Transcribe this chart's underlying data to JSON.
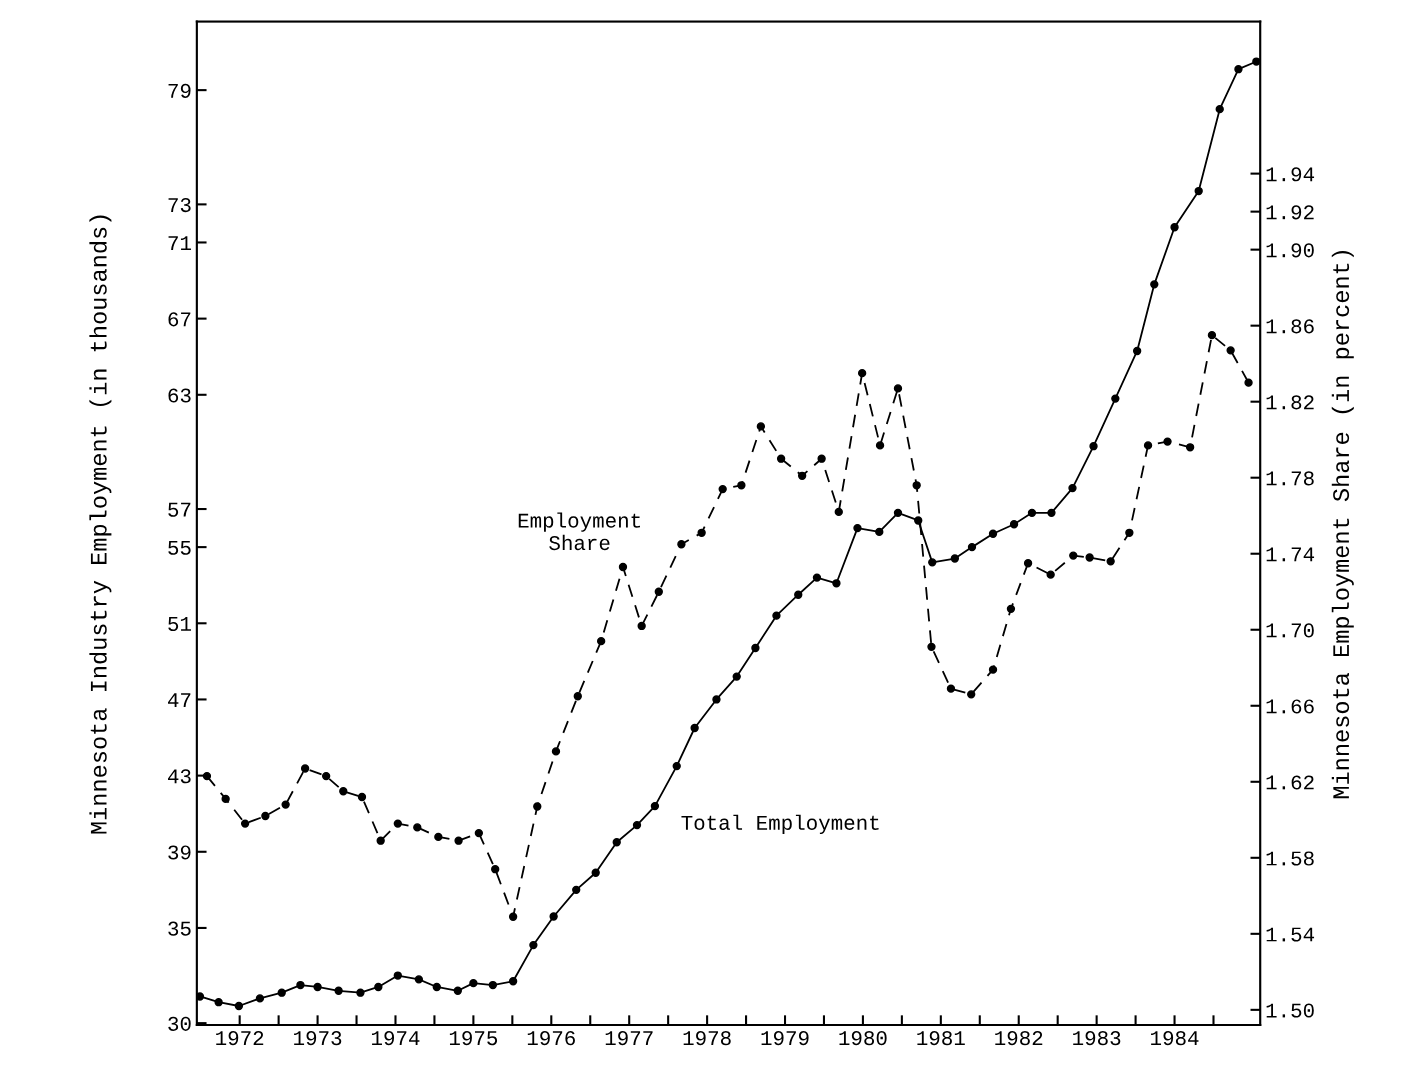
{
  "chart_data": {
    "type": "line",
    "ylabel": "Minnesota Industry Employment (in thousands)",
    "y2label": "Minnesota Employment Share (in percent)",
    "xlim": [
      1971.95,
      1985.6
    ],
    "xticks": [
      {
        "value": 1972.5,
        "label": "1972"
      },
      {
        "value": 1973,
        "label": null
      },
      {
        "value": 1973.5,
        "label": "1973"
      },
      {
        "value": 1974,
        "label": null
      },
      {
        "value": 1974.5,
        "label": "1974"
      },
      {
        "value": 1975,
        "label": null
      },
      {
        "value": 1975.5,
        "label": "1975"
      },
      {
        "value": 1976,
        "label": null
      },
      {
        "value": 1976.5,
        "label": "1976"
      },
      {
        "value": 1977,
        "label": null
      },
      {
        "value": 1977.5,
        "label": "1977"
      },
      {
        "value": 1978,
        "label": null
      },
      {
        "value": 1978.5,
        "label": "1978"
      },
      {
        "value": 1979,
        "label": null
      },
      {
        "value": 1979.5,
        "label": "1979"
      },
      {
        "value": 1980,
        "label": null
      },
      {
        "value": 1980.5,
        "label": "1980"
      },
      {
        "value": 1981,
        "label": null
      },
      {
        "value": 1981.5,
        "label": "1981"
      },
      {
        "value": 1982,
        "label": null
      },
      {
        "value": 1982.5,
        "label": "1982"
      },
      {
        "value": 1983,
        "label": null
      },
      {
        "value": 1983.5,
        "label": "1983"
      },
      {
        "value": 1984,
        "label": null
      },
      {
        "value": 1984.5,
        "label": "1984"
      },
      {
        "value": 1985,
        "label": null
      }
    ],
    "ylim": [
      29.9,
      82.6
    ],
    "yticks": [
      30,
      35,
      39,
      43,
      47,
      51,
      55,
      57,
      63,
      67,
      71,
      73,
      79
    ],
    "y2lim": [
      1.492,
      2.02
    ],
    "y2ticks": [
      {
        "value": 1.5,
        "label": "1.50"
      },
      1.54,
      1.58,
      1.62,
      1.66,
      {
        "value": 1.7,
        "label": "1.70"
      },
      1.74,
      1.78,
      1.82,
      1.86,
      {
        "value": 1.9,
        "label": "1.90"
      },
      1.92,
      1.94
    ],
    "grid": false,
    "legend": false,
    "marker": "circle",
    "series": [
      {
        "name": "Total Employment",
        "color": "#000000",
        "line_style": "solid",
        "x": [
          1971.99,
          1972.23,
          1972.49,
          1972.76,
          1973.04,
          1973.28,
          1973.5,
          1973.77,
          1974.05,
          1974.28,
          1974.53,
          1974.8,
          1975.03,
          1975.3,
          1975.5,
          1975.75,
          1976.01,
          1976.27,
          1976.53,
          1976.82,
          1977.07,
          1977.34,
          1977.6,
          1977.83,
          1978.11,
          1978.34,
          1978.62,
          1978.88,
          1979.12,
          1979.39,
          1979.67,
          1979.91,
          1980.16,
          1980.43,
          1980.71,
          1980.95,
          1981.21,
          1981.39,
          1981.68,
          1981.9,
          1982.17,
          1982.44,
          1982.67,
          1982.92,
          1983.19,
          1983.46,
          1983.74,
          1984.02,
          1984.24,
          1984.5,
          1984.81,
          1985.08,
          1985.32,
          1985.55
        ],
        "values": [
          31.4,
          31.1,
          30.9,
          31.3,
          31.6,
          32.0,
          31.9,
          31.7,
          31.6,
          31.9,
          32.5,
          32.3,
          31.9,
          31.7,
          32.1,
          32.0,
          32.2,
          34.1,
          35.6,
          37.0,
          37.9,
          39.5,
          40.4,
          41.4,
          43.5,
          45.5,
          47.0,
          48.2,
          49.7,
          51.4,
          52.5,
          53.4,
          53.1,
          56.0,
          55.8,
          56.8,
          56.4,
          54.2,
          54.4,
          55.0,
          55.7,
          56.2,
          56.8,
          56.8,
          58.1,
          60.3,
          62.8,
          65.3,
          68.8,
          71.8,
          73.7,
          78.0,
          80.1,
          80.5
        ]
      },
      {
        "name": "Employment Share",
        "color": "#000000",
        "line_style": "dashed",
        "axis": "y2",
        "x": [
          1972.08,
          1972.32,
          1972.57,
          1972.83,
          1973.09,
          1973.34,
          1973.61,
          1973.83,
          1974.07,
          1974.31,
          1974.53,
          1974.78,
          1975.05,
          1975.31,
          1975.57,
          1975.78,
          1976.01,
          1976.32,
          1976.56,
          1976.84,
          1977.14,
          1977.42,
          1977.66,
          1977.88,
          1978.17,
          1978.43,
          1978.7,
          1978.94,
          1979.19,
          1979.45,
          1979.72,
          1979.97,
          1980.19,
          1980.49,
          1980.72,
          1980.95,
          1981.19,
          1981.38,
          1981.63,
          1981.89,
          1982.17,
          1982.4,
          1982.62,
          1982.91,
          1983.2,
          1983.41,
          1983.68,
          1983.92,
          1984.16,
          1984.41,
          1984.7,
          1984.98,
          1985.22,
          1985.45
        ],
        "values": [
          1.623,
          1.611,
          1.598,
          1.602,
          1.608,
          1.627,
          1.623,
          1.615,
          1.612,
          1.589,
          1.598,
          1.596,
          1.591,
          1.589,
          1.593,
          1.574,
          1.549,
          1.607,
          1.636,
          1.665,
          1.694,
          1.733,
          1.702,
          1.72,
          1.745,
          1.751,
          1.774,
          1.776,
          1.807,
          1.79,
          1.781,
          1.79,
          1.762,
          1.835,
          1.797,
          1.827,
          1.776,
          1.691,
          1.669,
          1.666,
          1.679,
          1.711,
          1.735,
          1.729,
          1.739,
          1.738,
          1.736,
          1.751,
          1.797,
          1.799,
          1.796,
          1.855,
          1.847,
          1.83
        ]
      }
    ]
  }
}
